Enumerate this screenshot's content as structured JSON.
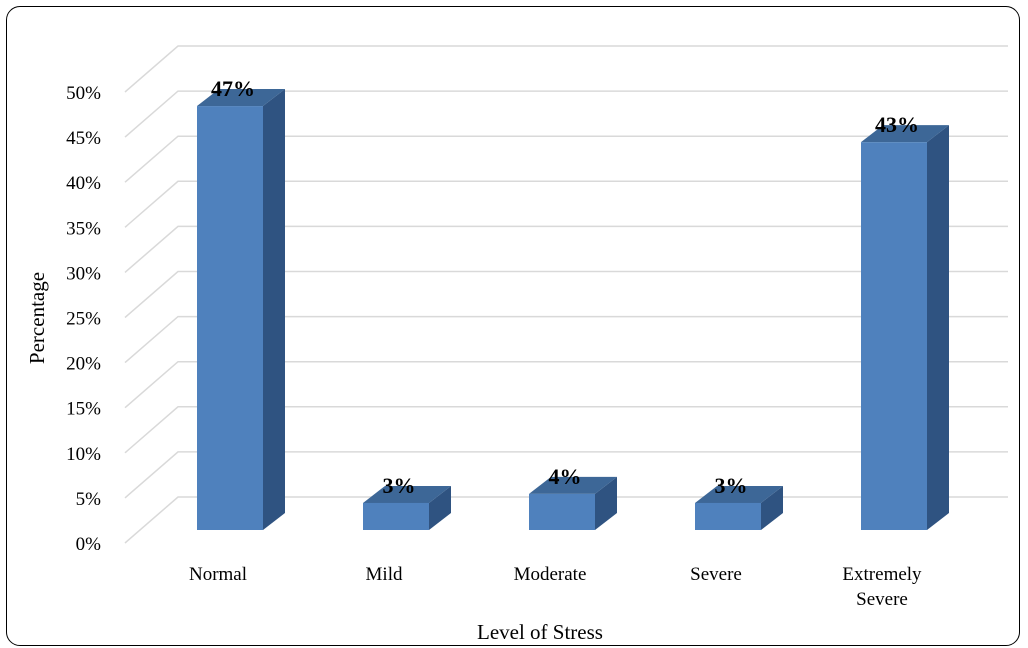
{
  "chart_data": {
    "type": "bar",
    "style": "3d-column",
    "categories": [
      "Normal",
      "Mild",
      "Moderate",
      "Severe",
      "Extremely Severe"
    ],
    "category_lines": [
      [
        "Normal"
      ],
      [
        "Mild"
      ],
      [
        "Moderate"
      ],
      [
        "Severe"
      ],
      [
        "Extremely",
        "Severe"
      ]
    ],
    "values": [
      47,
      3,
      4,
      3,
      43
    ],
    "data_labels": [
      "47%",
      "3%",
      "4%",
      "3%",
      "43%"
    ],
    "title": "",
    "xlabel": "Level of Stress",
    "ylabel": "Percentage",
    "ylim": [
      0,
      50
    ],
    "yticks": [
      0,
      5,
      10,
      15,
      20,
      25,
      30,
      35,
      40,
      45,
      50
    ],
    "ytick_labels": [
      "0%",
      "5%",
      "10%",
      "15%",
      "20%",
      "25%",
      "30%",
      "35%",
      "40%",
      "45%",
      "50%"
    ],
    "grid": true,
    "legend": "none",
    "colors": {
      "bar_front": "#4f81bd",
      "bar_side": "#2f5381",
      "bar_top": "#3d6797",
      "grid": "#d9d9d9"
    }
  }
}
